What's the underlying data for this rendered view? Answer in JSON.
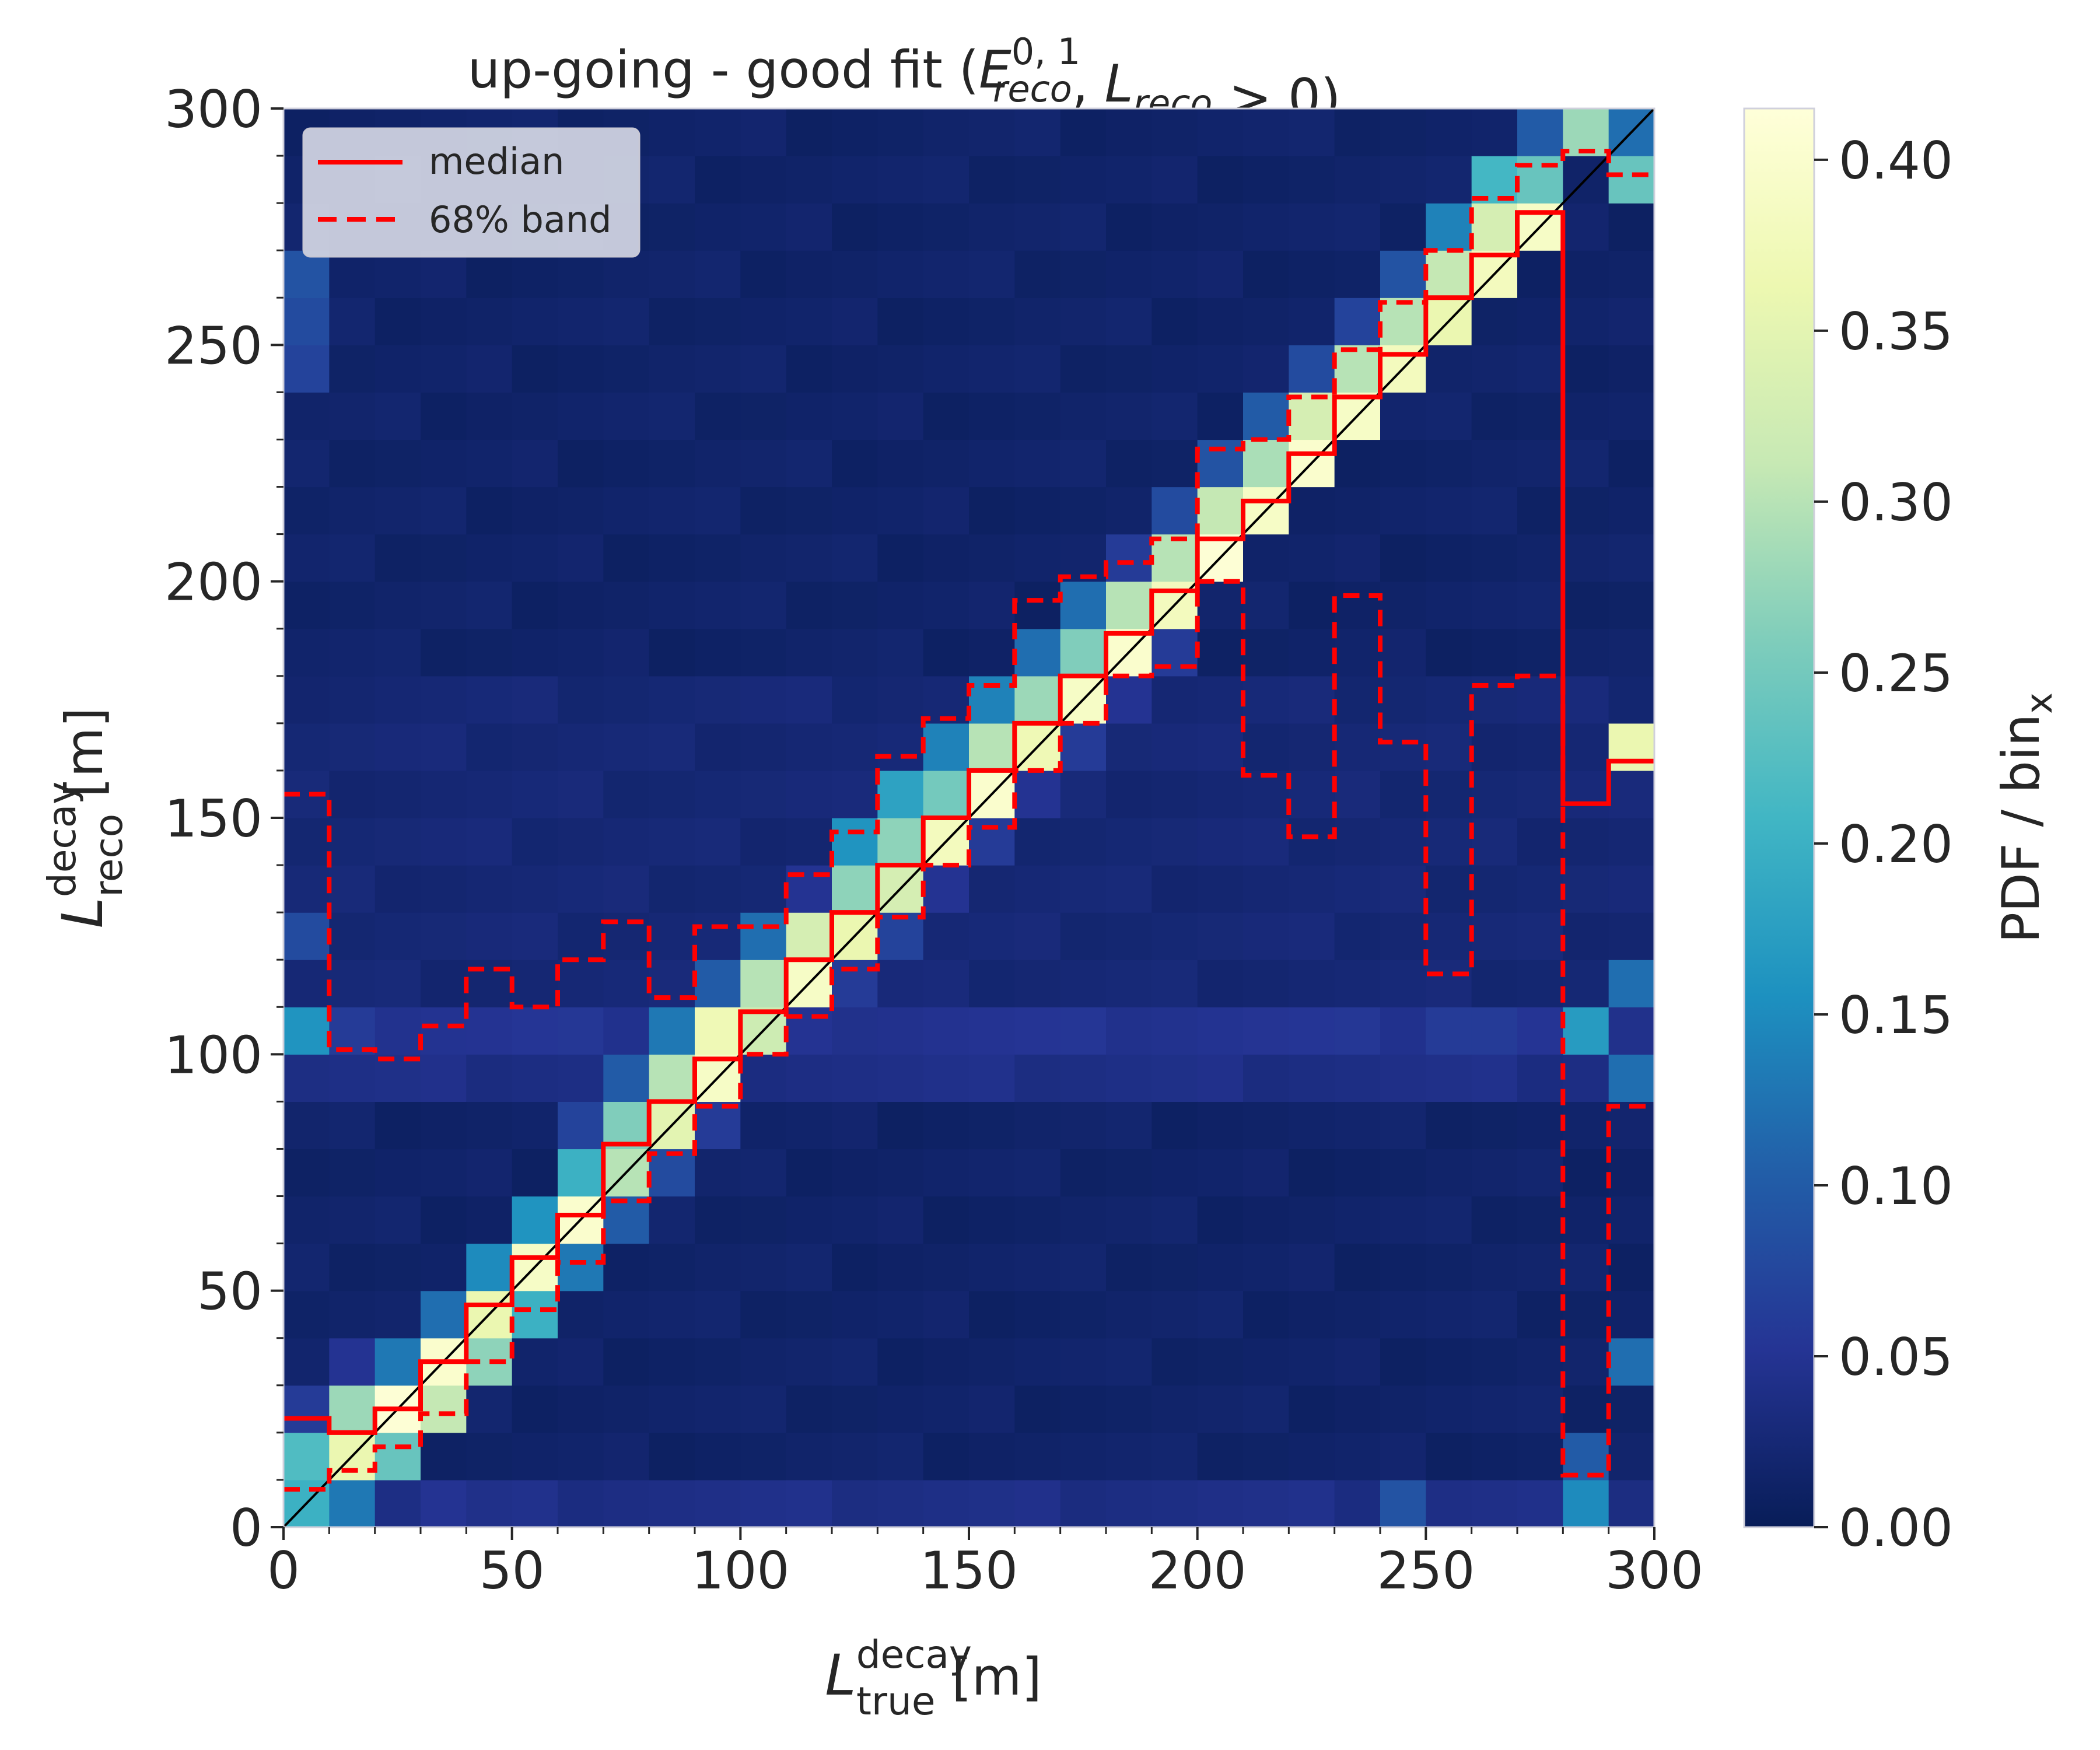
{
  "chart_data": {
    "type": "heatmap",
    "title": {
      "text": "up-going - good fit (",
      "math": [
        {
          "base": "E",
          "sup": "0, 1",
          "sub": "reco",
          "italic": true
        },
        {
          "text": ", "
        },
        {
          "base": "L",
          "sub": "reco",
          "italic": true
        },
        {
          "text": " > 0)"
        }
      ]
    },
    "xlabel": {
      "base": "L",
      "sup": "decay",
      "sub": "true",
      "unit": " [m]"
    },
    "ylabel": {
      "base": "L",
      "sup": "decay",
      "sub": "reco",
      "unit": " [m]"
    },
    "xlim": [
      0,
      300
    ],
    "ylim": [
      0,
      300
    ],
    "bin_width": 10,
    "xticks": [
      "0",
      "50",
      "100",
      "150",
      "200",
      "250",
      "300"
    ],
    "yticks": [
      "0",
      "50",
      "100",
      "150",
      "200",
      "250",
      "300"
    ],
    "grid": false,
    "colorbar": {
      "label": "PDF / bin",
      "label_sub": "x",
      "colormap": "YlGnBu",
      "range": [
        0,
        0.415
      ],
      "ticks": [
        "0.00",
        "0.05",
        "0.10",
        "0.15",
        "0.20",
        "0.25",
        "0.30",
        "0.35",
        "0.40"
      ],
      "stops": [
        "#ffffd9",
        "#edf8b1",
        "#c7e9b4",
        "#7fcdbb",
        "#41b6c4",
        "#1d91c0",
        "#225ea8",
        "#253494",
        "#081d58"
      ]
    },
    "legend": {
      "position": "top-left",
      "entries": [
        {
          "label": "median",
          "style": "solid",
          "color": "#ff0000"
        },
        {
          "label": "68% band",
          "style": "dashed",
          "color": "#ff0000"
        }
      ]
    },
    "diagonal": {
      "style": "solid",
      "color": "#000000",
      "from": [
        0,
        0
      ],
      "to": [
        300,
        300
      ]
    },
    "x_bin_edges": [
      0,
      10,
      20,
      30,
      40,
      50,
      60,
      70,
      80,
      90,
      100,
      110,
      120,
      130,
      140,
      150,
      160,
      170,
      180,
      190,
      200,
      210,
      220,
      230,
      240,
      250,
      260,
      270,
      280,
      290,
      300
    ],
    "median": [
      23,
      20,
      25,
      35,
      47,
      57,
      66,
      81,
      90,
      99,
      109,
      120,
      130,
      140,
      150,
      160,
      170,
      180,
      189,
      198,
      209,
      217,
      227,
      239,
      248,
      260,
      269,
      278,
      153,
      162
    ],
    "band_low": [
      8,
      12,
      17,
      24,
      35,
      46,
      56,
      69,
      79,
      89,
      100,
      108,
      118,
      129,
      140,
      148,
      160,
      170,
      180,
      182,
      200,
      159,
      146,
      197,
      166,
      117,
      178,
      180,
      11,
      89
    ],
    "band_high": [
      155,
      101,
      99,
      106,
      118,
      110,
      120,
      128,
      112,
      127,
      127,
      138,
      147,
      163,
      171,
      178,
      196,
      201,
      204,
      209,
      228,
      230,
      239,
      249,
      259,
      270,
      281,
      288,
      291,
      286
    ],
    "background_rows": [
      {
        "y": [
          0,
          10
        ],
        "value": 0.04
      },
      {
        "y": [
          10,
          90
        ],
        "value": 0.015
      },
      {
        "y": [
          90,
          100
        ],
        "value": 0.04
      },
      {
        "y": [
          100,
          110
        ],
        "value": 0.05
      },
      {
        "y": [
          110,
          180
        ],
        "value": 0.025
      },
      {
        "y": [
          180,
          300
        ],
        "value": 0.015
      }
    ],
    "column_profiles": [
      {
        "x": 0,
        "cells": [
          [
            0,
            0.2
          ],
          [
            10,
            0.22
          ],
          [
            20,
            0.06
          ],
          [
            100,
            0.16
          ],
          [
            120,
            0.08
          ],
          [
            240,
            0.07
          ],
          [
            250,
            0.08
          ],
          [
            260,
            0.09
          ]
        ]
      },
      {
        "x": 10,
        "cells": [
          [
            0,
            0.13
          ],
          [
            10,
            0.36
          ],
          [
            20,
            0.28
          ],
          [
            30,
            0.05
          ],
          [
            100,
            0.06
          ]
        ]
      },
      {
        "x": 20,
        "cells": [
          [
            10,
            0.24
          ],
          [
            20,
            0.41
          ],
          [
            30,
            0.13
          ]
        ]
      },
      {
        "x": 30,
        "cells": [
          [
            0,
            0.05
          ],
          [
            20,
            0.31
          ],
          [
            30,
            0.4
          ],
          [
            40,
            0.12
          ]
        ]
      },
      {
        "x": 40,
        "cells": [
          [
            30,
            0.27
          ],
          [
            40,
            0.36
          ],
          [
            50,
            0.15
          ],
          [
            100,
            0.05
          ]
        ]
      },
      {
        "x": 50,
        "cells": [
          [
            40,
            0.2
          ],
          [
            50,
            0.39
          ],
          [
            60,
            0.16
          ]
        ]
      },
      {
        "x": 60,
        "cells": [
          [
            50,
            0.13
          ],
          [
            60,
            0.4
          ],
          [
            70,
            0.2
          ],
          [
            80,
            0.07
          ]
        ]
      },
      {
        "x": 70,
        "cells": [
          [
            60,
            0.1
          ],
          [
            70,
            0.3
          ],
          [
            80,
            0.26
          ],
          [
            90,
            0.1
          ]
        ]
      },
      {
        "x": 80,
        "cells": [
          [
            70,
            0.08
          ],
          [
            80,
            0.35
          ],
          [
            90,
            0.3
          ],
          [
            100,
            0.13
          ]
        ]
      },
      {
        "x": 90,
        "cells": [
          [
            80,
            0.06
          ],
          [
            90,
            0.39
          ],
          [
            100,
            0.37
          ],
          [
            110,
            0.1
          ]
        ]
      },
      {
        "x": 100,
        "cells": [
          [
            100,
            0.32
          ],
          [
            110,
            0.3
          ],
          [
            120,
            0.12
          ]
        ]
      },
      {
        "x": 110,
        "cells": [
          [
            100,
            0.05
          ],
          [
            110,
            0.39
          ],
          [
            120,
            0.33
          ],
          [
            130,
            0.05
          ]
        ]
      },
      {
        "x": 120,
        "cells": [
          [
            110,
            0.06
          ],
          [
            120,
            0.36
          ],
          [
            130,
            0.27
          ],
          [
            140,
            0.16
          ]
        ]
      },
      {
        "x": 130,
        "cells": [
          [
            120,
            0.07
          ],
          [
            130,
            0.33
          ],
          [
            140,
            0.27
          ],
          [
            150,
            0.18
          ]
        ]
      },
      {
        "x": 140,
        "cells": [
          [
            130,
            0.05
          ],
          [
            140,
            0.38
          ],
          [
            150,
            0.25
          ],
          [
            160,
            0.14
          ]
        ]
      },
      {
        "x": 150,
        "cells": [
          [
            140,
            0.06
          ],
          [
            150,
            0.4
          ],
          [
            160,
            0.3
          ],
          [
            170,
            0.14
          ]
        ]
      },
      {
        "x": 160,
        "cells": [
          [
            150,
            0.05
          ],
          [
            160,
            0.37
          ],
          [
            170,
            0.28
          ],
          [
            180,
            0.12
          ]
        ]
      },
      {
        "x": 170,
        "cells": [
          [
            160,
            0.06
          ],
          [
            170,
            0.39
          ],
          [
            180,
            0.26
          ],
          [
            190,
            0.12
          ]
        ]
      },
      {
        "x": 180,
        "cells": [
          [
            170,
            0.05
          ],
          [
            180,
            0.4
          ],
          [
            190,
            0.3
          ],
          [
            200,
            0.06
          ]
        ]
      },
      {
        "x": 190,
        "cells": [
          [
            180,
            0.06
          ],
          [
            190,
            0.38
          ],
          [
            200,
            0.3
          ],
          [
            210,
            0.08
          ]
        ]
      },
      {
        "x": 200,
        "cells": [
          [
            200,
            0.41
          ],
          [
            210,
            0.31
          ],
          [
            220,
            0.09
          ]
        ]
      },
      {
        "x": 210,
        "cells": [
          [
            210,
            0.39
          ],
          [
            220,
            0.29
          ],
          [
            230,
            0.1
          ]
        ]
      },
      {
        "x": 220,
        "cells": [
          [
            220,
            0.4
          ],
          [
            230,
            0.33
          ],
          [
            240,
            0.08
          ]
        ]
      },
      {
        "x": 230,
        "cells": [
          [
            230,
            0.39
          ],
          [
            240,
            0.3
          ],
          [
            250,
            0.07
          ]
        ]
      },
      {
        "x": 240,
        "cells": [
          [
            240,
            0.38
          ],
          [
            250,
            0.3
          ],
          [
            260,
            0.09
          ],
          [
            0,
            0.09
          ]
        ]
      },
      {
        "x": 250,
        "cells": [
          [
            250,
            0.36
          ],
          [
            260,
            0.31
          ],
          [
            270,
            0.14
          ],
          [
            100,
            0.06
          ]
        ]
      },
      {
        "x": 260,
        "cells": [
          [
            260,
            0.38
          ],
          [
            270,
            0.33
          ],
          [
            280,
            0.21
          ],
          [
            100,
            0.06
          ]
        ]
      },
      {
        "x": 270,
        "cells": [
          [
            270,
            0.39
          ],
          [
            280,
            0.24
          ],
          [
            290,
            0.1
          ]
        ]
      },
      {
        "x": 280,
        "cells": [
          [
            0,
            0.15
          ],
          [
            10,
            0.1
          ],
          [
            100,
            0.17
          ],
          [
            290,
            0.28
          ]
        ]
      },
      {
        "x": 290,
        "cells": [
          [
            30,
            0.12
          ],
          [
            90,
            0.12
          ],
          [
            110,
            0.12
          ],
          [
            160,
            0.36
          ],
          [
            280,
            0.24
          ],
          [
            290,
            0.12
          ]
        ]
      }
    ]
  }
}
